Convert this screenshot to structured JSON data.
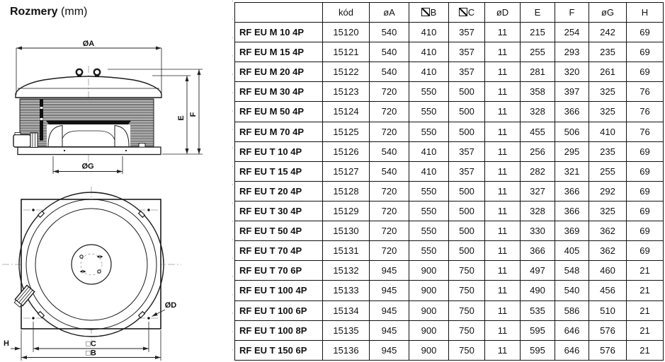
{
  "title": {
    "name": "Rozmery",
    "unit": "(mm)"
  },
  "diagram": {
    "side_view": {
      "dim_a": "ØA",
      "dim_e": "E",
      "dim_f": "F",
      "dim_g": "ØG"
    },
    "top_view": {
      "dim_d": "ØD",
      "dim_h": "H",
      "dim_c": "□C",
      "dim_b": "□B"
    }
  },
  "table": {
    "headers": [
      {
        "symbol": "none",
        "label": ""
      },
      {
        "symbol": "none",
        "label": "kód"
      },
      {
        "symbol": "none",
        "label": "øA"
      },
      {
        "symbol": "square-slash",
        "label": "B"
      },
      {
        "symbol": "square-slash",
        "label": "C"
      },
      {
        "symbol": "none",
        "label": "øD"
      },
      {
        "symbol": "none",
        "label": "E"
      },
      {
        "symbol": "none",
        "label": "F"
      },
      {
        "symbol": "none",
        "label": "øG"
      },
      {
        "symbol": "none",
        "label": "H"
      }
    ],
    "rows": [
      {
        "model": "RF EU M 10 4P",
        "values": [
          "15120",
          "540",
          "410",
          "357",
          "11",
          "215",
          "254",
          "242",
          "69"
        ]
      },
      {
        "model": "RF EU M 15 4P",
        "values": [
          "15121",
          "540",
          "410",
          "357",
          "11",
          "255",
          "293",
          "235",
          "69"
        ]
      },
      {
        "model": "RF EU M 20 4P",
        "values": [
          "15122",
          "540",
          "410",
          "357",
          "11",
          "281",
          "320",
          "261",
          "69"
        ]
      },
      {
        "model": "RF EU M 30 4P",
        "values": [
          "15123",
          "720",
          "550",
          "500",
          "11",
          "358",
          "397",
          "325",
          "76"
        ]
      },
      {
        "model": "RF EU M 50 4P",
        "values": [
          "15124",
          "720",
          "550",
          "500",
          "11",
          "328",
          "366",
          "325",
          "76"
        ]
      },
      {
        "model": "RF EU M 70 4P",
        "values": [
          "15125",
          "720",
          "550",
          "500",
          "11",
          "455",
          "506",
          "410",
          "76"
        ]
      },
      {
        "model": "RF EU T 10 4P",
        "values": [
          "15126",
          "540",
          "410",
          "357",
          "11",
          "256",
          "295",
          "235",
          "69"
        ]
      },
      {
        "model": "RF EU T 15 4P",
        "values": [
          "15127",
          "540",
          "410",
          "357",
          "11",
          "282",
          "321",
          "255",
          "69"
        ]
      },
      {
        "model": "RF EU T 20 4P",
        "values": [
          "15128",
          "720",
          "550",
          "500",
          "11",
          "327",
          "366",
          "292",
          "69"
        ]
      },
      {
        "model": "RF EU T 30 4P",
        "values": [
          "15129",
          "720",
          "550",
          "500",
          "11",
          "328",
          "366",
          "325",
          "69"
        ]
      },
      {
        "model": "RF EU T 50 4P",
        "values": [
          "15130",
          "720",
          "550",
          "500",
          "11",
          "330",
          "369",
          "362",
          "69"
        ]
      },
      {
        "model": "RF EU T 70 4P",
        "values": [
          "15131",
          "720",
          "550",
          "500",
          "11",
          "366",
          "405",
          "362",
          "69"
        ]
      },
      {
        "model": "RF EU T 70 6P",
        "values": [
          "15132",
          "945",
          "900",
          "750",
          "11",
          "497",
          "548",
          "460",
          "21"
        ]
      },
      {
        "model": "RF EU T 100 4P",
        "values": [
          "15133",
          "945",
          "900",
          "750",
          "11",
          "490",
          "540",
          "456",
          "21"
        ]
      },
      {
        "model": "RF EU T 100 6P",
        "values": [
          "15134",
          "945",
          "900",
          "750",
          "11",
          "535",
          "586",
          "510",
          "21"
        ]
      },
      {
        "model": "RF EU T 100 8P",
        "values": [
          "15135",
          "945",
          "900",
          "750",
          "11",
          "595",
          "646",
          "576",
          "21"
        ]
      },
      {
        "model": "RF EU T 150 6P",
        "values": [
          "15136",
          "945",
          "900",
          "750",
          "11",
          "595",
          "646",
          "576",
          "21"
        ]
      }
    ]
  }
}
